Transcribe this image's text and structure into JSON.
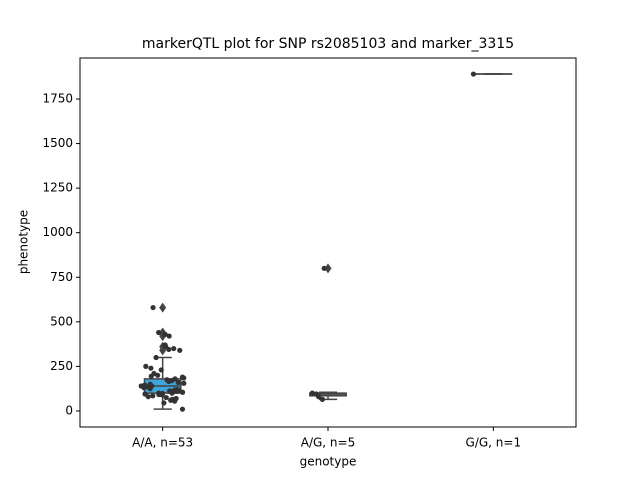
{
  "chart_data": {
    "type": "box",
    "title": "markerQTL plot for SNP rs2085103 and marker_3315",
    "x_label": "genotype",
    "y_label": "phenotype",
    "categories": [
      "A/A, n=53",
      "A/G, n=5",
      "G/G, n=1"
    ],
    "boxes": [
      {
        "whislo": 10,
        "q1": 100,
        "med": 140,
        "q3": 180,
        "whishi": 300,
        "fliers": [
          340,
          360,
          420,
          440,
          580
        ],
        "color": "#3ea6dc"
      },
      {
        "whislo": 65,
        "q1": 85,
        "med": 95,
        "q3": 100,
        "whishi": 105,
        "fliers": [
          800
        ],
        "color": "#8c8c8c"
      },
      {
        "whislo": 1890,
        "q1": 1890,
        "med": 1890,
        "q3": 1890,
        "whishi": 1890,
        "fliers": [],
        "color": "#8c8c8c"
      }
    ],
    "points": [
      [
        10,
        45,
        55,
        60,
        65,
        70,
        75,
        80,
        85,
        90,
        92,
        95,
        98,
        100,
        100,
        105,
        108,
        110,
        112,
        115,
        118,
        120,
        125,
        130,
        135,
        140,
        140,
        145,
        150,
        155,
        160,
        165,
        170,
        175,
        180,
        185,
        190,
        195,
        200,
        210,
        230,
        240,
        250,
        300,
        340,
        345,
        350,
        360,
        370,
        420,
        430,
        440,
        580
      ],
      [
        65,
        80,
        95,
        100,
        800
      ],
      [
        1890
      ]
    ],
    "point_color": "#333333",
    "ylim": [
      -90,
      1980
    ],
    "yticks": [
      0,
      250,
      500,
      750,
      1000,
      1250,
      1500,
      1750
    ]
  }
}
